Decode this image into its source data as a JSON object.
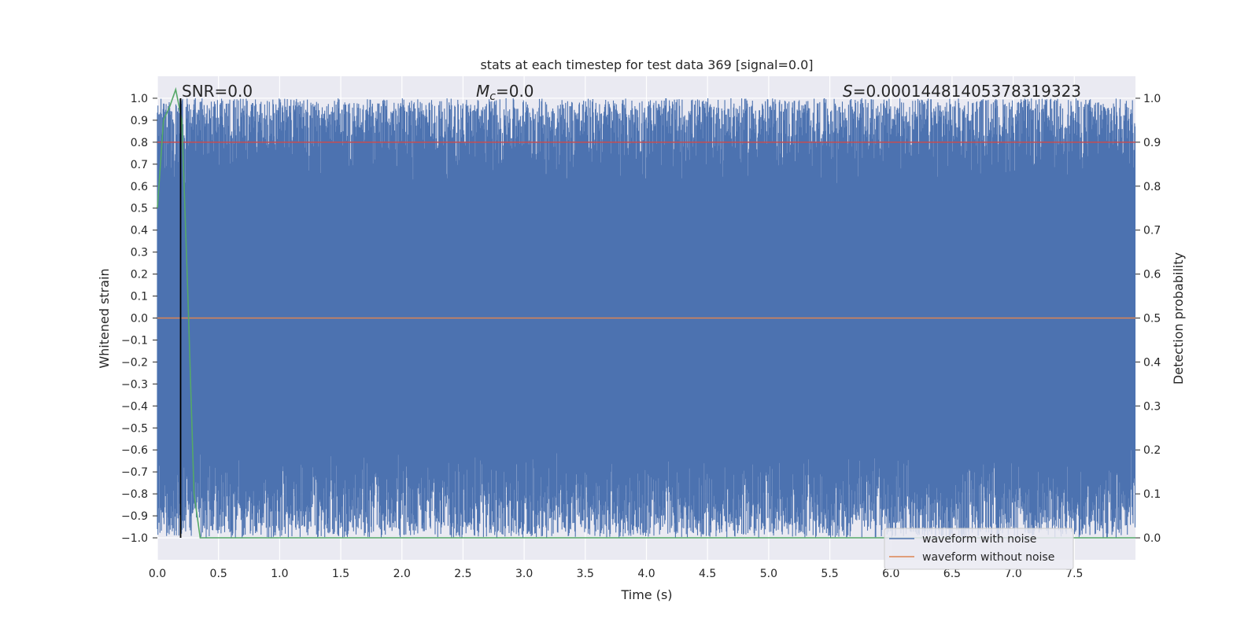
{
  "chart_data": {
    "type": "line",
    "title": "stats at each timestep for test data 369 [signal=0.0]",
    "xlabel": "Time (s)",
    "ylabel": "Whitened strain",
    "ylabel_right": "Detection probability",
    "xlim": [
      0.0,
      8.0
    ],
    "ylim": [
      -1.1,
      1.1
    ],
    "ylim_right": [
      -0.05,
      1.05
    ],
    "x_ticks": [
      "0.0",
      "0.5",
      "1.0",
      "1.5",
      "2.0",
      "2.5",
      "3.0",
      "3.5",
      "4.0",
      "4.5",
      "5.0",
      "5.5",
      "6.0",
      "6.5",
      "7.0",
      "7.5"
    ],
    "y_ticks": [
      "1.0",
      "0.9",
      "0.8",
      "0.7",
      "0.6",
      "0.5",
      "0.4",
      "0.3",
      "0.2",
      "0.1",
      "0.0",
      "−0.1",
      "−0.2",
      "−0.3",
      "−0.4",
      "−0.5",
      "−0.6",
      "−0.7",
      "−0.8",
      "−0.9",
      "−1.0"
    ],
    "y_right_ticks": [
      "1.0",
      "0.9",
      "0.8",
      "0.7",
      "0.6",
      "0.5",
      "0.4",
      "0.3",
      "0.2",
      "0.1",
      "0.0"
    ],
    "grid": true,
    "annotations": {
      "snr": "SNR=0.0",
      "mc_symbol": "M",
      "mc_sub": "c",
      "mc_value": "=0.0",
      "s_symbol": "S",
      "s_value": "=0.00014481405378319323"
    },
    "legend": {
      "placement": "lower-right",
      "entries": [
        "waveform with noise",
        "waveform without noise"
      ]
    },
    "colors": {
      "noise": "#4c72b0",
      "clean": "#dd8452",
      "probability": "#55a868",
      "threshold": "#c44e52",
      "marker": "#000000",
      "background": "#eaeaf2"
    },
    "series": [
      {
        "name": "waveform with noise",
        "description_range": [
          -1.0,
          1.0
        ]
      },
      {
        "name": "waveform without noise",
        "constant": 0.0
      },
      {
        "x": [
          0.0,
          0.05,
          0.1,
          0.15,
          0.2,
          0.25,
          0.3,
          0.35,
          8.0
        ],
        "values": [
          0.75,
          0.95,
          0.98,
          1.02,
          0.95,
          0.55,
          0.1,
          0.0,
          0.0
        ]
      },
      {
        "constant": 0.9
      },
      {
        "vertical_x": 0.19
      }
    ]
  }
}
